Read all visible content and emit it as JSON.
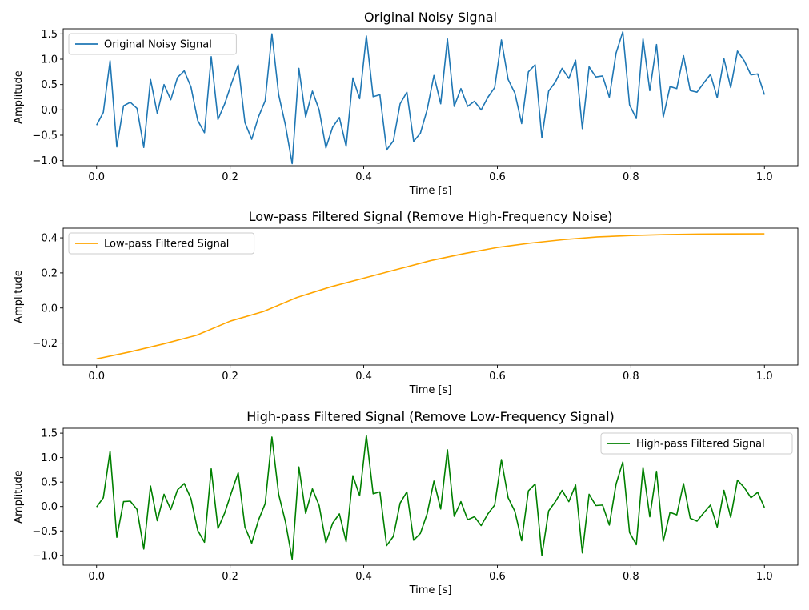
{
  "chart_data": [
    {
      "type": "line",
      "title": "Original Noisy Signal",
      "xlabel": "Time [s]",
      "ylabel": "Amplitude",
      "xlim": [
        -0.05,
        1.05
      ],
      "ylim": [
        -1.1,
        1.6
      ],
      "xticks": [
        0.0,
        0.2,
        0.4,
        0.6,
        0.8,
        1.0
      ],
      "xtick_labels": [
        "0.0",
        "0.2",
        "0.4",
        "0.6",
        "0.8",
        "1.0"
      ],
      "yticks": [
        -1.0,
        -0.5,
        0.0,
        0.5,
        1.0,
        1.5
      ],
      "ytick_labels": [
        "−1.0",
        "−0.5",
        "0.0",
        "0.5",
        "1.0",
        "1.5"
      ],
      "legend": "upper-left",
      "series": [
        {
          "name": "Original Noisy Signal",
          "color": "#1f77b4",
          "x": [
            0.0,
            0.0101,
            0.0202,
            0.0303,
            0.0404,
            0.0505,
            0.0606,
            0.0707,
            0.0808,
            0.0909,
            0.101,
            0.1111,
            0.1212,
            0.1313,
            0.1414,
            0.1515,
            0.1616,
            0.1717,
            0.1818,
            0.1919,
            0.202,
            0.2121,
            0.2222,
            0.2323,
            0.2424,
            0.2525,
            0.2626,
            0.2727,
            0.2828,
            0.2929,
            0.303,
            0.3131,
            0.3232,
            0.3333,
            0.3434,
            0.3535,
            0.3636,
            0.3737,
            0.3838,
            0.3939,
            0.404,
            0.4141,
            0.4242,
            0.4343,
            0.4444,
            0.4545,
            0.4646,
            0.4747,
            0.4848,
            0.4949,
            0.5051,
            0.5152,
            0.5253,
            0.5354,
            0.5455,
            0.5556,
            0.5657,
            0.5758,
            0.5859,
            0.596,
            0.6061,
            0.6162,
            0.6263,
            0.6364,
            0.6465,
            0.6566,
            0.6667,
            0.6768,
            0.6869,
            0.697,
            0.7071,
            0.7172,
            0.7273,
            0.7374,
            0.7475,
            0.7576,
            0.7677,
            0.7778,
            0.7879,
            0.798,
            0.8081,
            0.8182,
            0.8283,
            0.8384,
            0.8485,
            0.8586,
            0.8687,
            0.8788,
            0.8889,
            0.899,
            0.9091,
            0.9192,
            0.9293,
            0.9394,
            0.9495,
            0.9596,
            0.9697,
            0.9798,
            0.9899,
            1.0
          ],
          "y": [
            -0.3,
            -0.05,
            0.97,
            -0.73,
            0.08,
            0.15,
            0.03,
            -0.74,
            0.6,
            -0.07,
            0.5,
            0.2,
            0.64,
            0.77,
            0.45,
            -0.21,
            -0.45,
            1.05,
            -0.19,
            0.12,
            0.52,
            0.89,
            -0.25,
            -0.58,
            -0.14,
            0.18,
            1.5,
            0.3,
            -0.3,
            -1.06,
            0.82,
            -0.14,
            0.37,
            0.0,
            -0.75,
            -0.34,
            -0.15,
            -0.72,
            0.63,
            0.22,
            1.46,
            0.26,
            0.3,
            -0.79,
            -0.61,
            0.12,
            0.35,
            -0.62,
            -0.46,
            0.0,
            0.68,
            0.12,
            1.4,
            0.07,
            0.42,
            0.07,
            0.17,
            0.0,
            0.25,
            0.44,
            1.38,
            0.6,
            0.33,
            -0.27,
            0.75,
            0.89,
            -0.55,
            0.37,
            0.55,
            0.82,
            0.62,
            0.98,
            -0.37,
            0.85,
            0.65,
            0.67,
            0.25,
            1.12,
            1.54,
            0.1,
            -0.17,
            1.4,
            0.38,
            1.29,
            -0.14,
            0.46,
            0.42,
            1.07,
            0.38,
            0.35,
            0.53,
            0.7,
            0.24,
            1.01,
            0.44,
            1.16,
            0.97,
            0.69,
            0.71,
            0.3
          ]
        }
      ]
    },
    {
      "type": "line",
      "title": "Low-pass Filtered Signal (Remove High-Frequency Noise)",
      "xlabel": "Time [s]",
      "ylabel": "Amplitude",
      "xlim": [
        -0.05,
        1.05
      ],
      "ylim": [
        -0.325,
        0.455
      ],
      "xticks": [
        0.0,
        0.2,
        0.4,
        0.6,
        0.8,
        1.0
      ],
      "xtick_labels": [
        "0.0",
        "0.2",
        "0.4",
        "0.6",
        "0.8",
        "1.0"
      ],
      "yticks": [
        -0.2,
        0.0,
        0.2,
        0.4
      ],
      "ytick_labels": [
        "−0.2",
        "0.0",
        "0.2",
        "0.4"
      ],
      "legend": "upper-left",
      "series": [
        {
          "name": "Low-pass Filtered Signal",
          "color": "#ffa500",
          "x": [
            0.0,
            0.05,
            0.1,
            0.15,
            0.2,
            0.25,
            0.3,
            0.35,
            0.4,
            0.45,
            0.5,
            0.55,
            0.6,
            0.65,
            0.7,
            0.75,
            0.8,
            0.85,
            0.9,
            0.95,
            1.0
          ],
          "y": [
            -0.29,
            -0.25,
            -0.205,
            -0.155,
            -0.075,
            -0.02,
            0.06,
            0.12,
            0.17,
            0.22,
            0.27,
            0.31,
            0.345,
            0.37,
            0.39,
            0.405,
            0.413,
            0.418,
            0.421,
            0.422,
            0.423
          ]
        }
      ]
    },
    {
      "type": "line",
      "title": "High-pass Filtered Signal (Remove Low-Frequency Signal)",
      "xlabel": "Time [s]",
      "ylabel": "Amplitude",
      "xlim": [
        -0.05,
        1.05
      ],
      "ylim": [
        -1.2,
        1.6
      ],
      "xticks": [
        0.0,
        0.2,
        0.4,
        0.6,
        0.8,
        1.0
      ],
      "xtick_labels": [
        "0.0",
        "0.2",
        "0.4",
        "0.6",
        "0.8",
        "1.0"
      ],
      "yticks": [
        -1.0,
        -0.5,
        0.0,
        0.5,
        1.0,
        1.5
      ],
      "ytick_labels": [
        "−1.0",
        "−0.5",
        "0.0",
        "0.5",
        "1.0",
        "1.5"
      ],
      "legend": "upper-right",
      "series": [
        {
          "name": "High-pass Filtered Signal",
          "color": "#008000",
          "x": [
            0.0,
            0.0101,
            0.0202,
            0.0303,
            0.0404,
            0.0505,
            0.0606,
            0.0707,
            0.0808,
            0.0909,
            0.101,
            0.1111,
            0.1212,
            0.1313,
            0.1414,
            0.1515,
            0.1616,
            0.1717,
            0.1818,
            0.1919,
            0.202,
            0.2121,
            0.2222,
            0.2323,
            0.2424,
            0.2525,
            0.2626,
            0.2727,
            0.2828,
            0.2929,
            0.303,
            0.3131,
            0.3232,
            0.3333,
            0.3434,
            0.3535,
            0.3636,
            0.3737,
            0.3838,
            0.3939,
            0.404,
            0.4141,
            0.4242,
            0.4343,
            0.4444,
            0.4545,
            0.4646,
            0.4747,
            0.4848,
            0.4949,
            0.5051,
            0.5152,
            0.5253,
            0.5354,
            0.5455,
            0.5556,
            0.5657,
            0.5758,
            0.5859,
            0.596,
            0.6061,
            0.6162,
            0.6263,
            0.6364,
            0.6465,
            0.6566,
            0.6667,
            0.6768,
            0.6869,
            0.697,
            0.7071,
            0.7172,
            0.7273,
            0.7374,
            0.7475,
            0.7576,
            0.7677,
            0.7778,
            0.7879,
            0.798,
            0.8081,
            0.8182,
            0.8283,
            0.8384,
            0.8485,
            0.8586,
            0.8687,
            0.8788,
            0.8889,
            0.899,
            0.9091,
            0.9192,
            0.9293,
            0.9394,
            0.9495,
            0.9596,
            0.9697,
            0.9798,
            0.9899,
            1.0
          ],
          "y": [
            -0.01,
            0.18,
            1.13,
            -0.63,
            0.1,
            0.11,
            -0.06,
            -0.87,
            0.42,
            -0.29,
            0.25,
            -0.06,
            0.34,
            0.47,
            0.16,
            -0.49,
            -0.73,
            0.77,
            -0.45,
            -0.13,
            0.29,
            0.69,
            -0.42,
            -0.75,
            -0.28,
            0.06,
            1.42,
            0.25,
            -0.31,
            -1.08,
            0.81,
            -0.14,
            0.36,
            0.02,
            -0.74,
            -0.34,
            -0.15,
            -0.72,
            0.63,
            0.22,
            1.45,
            0.26,
            0.3,
            -0.8,
            -0.61,
            0.07,
            0.3,
            -0.69,
            -0.55,
            -0.15,
            0.52,
            -0.05,
            1.16,
            -0.2,
            0.1,
            -0.27,
            -0.21,
            -0.39,
            -0.15,
            0.03,
            0.96,
            0.18,
            -0.1,
            -0.7,
            0.32,
            0.46,
            -1.0,
            -0.09,
            0.1,
            0.33,
            0.1,
            0.44,
            -0.95,
            0.25,
            0.02,
            0.03,
            -0.38,
            0.46,
            0.91,
            -0.53,
            -0.78,
            0.8,
            -0.21,
            0.72,
            -0.71,
            -0.12,
            -0.17,
            0.47,
            -0.24,
            -0.3,
            -0.13,
            0.03,
            -0.42,
            0.33,
            -0.22,
            0.54,
            0.39,
            0.18,
            0.29,
            -0.02
          ]
        }
      ]
    }
  ]
}
